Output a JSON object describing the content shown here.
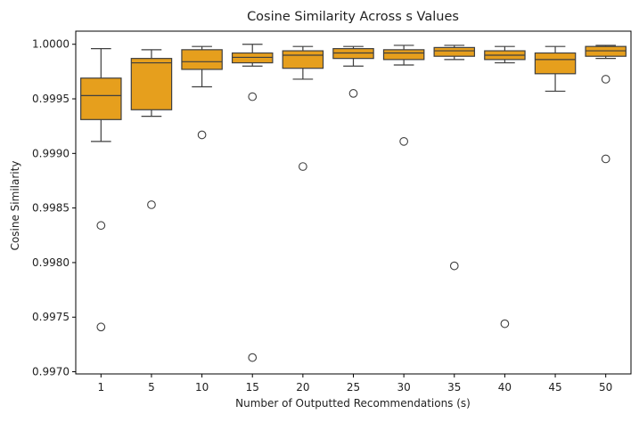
{
  "chart_data": {
    "type": "box",
    "title": "Cosine Similarity Across s Values",
    "xlabel": "Number of Outputted Recommendations (s)",
    "ylabel": "Cosine Similarity",
    "categories": [
      "1",
      "5",
      "10",
      "15",
      "20",
      "25",
      "30",
      "35",
      "40",
      "45",
      "50"
    ],
    "ylim": [
      0.99698,
      1.00012
    ],
    "yticks": [
      0.997,
      0.9975,
      0.998,
      0.9985,
      0.999,
      0.9995,
      1.0
    ],
    "ytick_labels": [
      "0.9970",
      "0.9975",
      "0.9980",
      "0.9985",
      "0.9990",
      "0.9995",
      "1.0000"
    ],
    "box_color": "#e69f1d",
    "edge_color": "#3f3f3f",
    "grid": false,
    "boxes": [
      {
        "category": "1",
        "whisker_low": 0.99911,
        "q1": 0.99931,
        "median": 0.99953,
        "q3": 0.99969,
        "whisker_high": 0.99996,
        "fliers": [
          0.99834,
          0.99741
        ]
      },
      {
        "category": "5",
        "whisker_low": 0.99934,
        "q1": 0.9994,
        "median": 0.99983,
        "q3": 0.99987,
        "whisker_high": 0.99995,
        "fliers": [
          0.99853
        ]
      },
      {
        "category": "10",
        "whisker_low": 0.99961,
        "q1": 0.99977,
        "median": 0.99984,
        "q3": 0.99995,
        "whisker_high": 0.99998,
        "fliers": [
          0.99917
        ]
      },
      {
        "category": "15",
        "whisker_low": 0.9998,
        "q1": 0.99983,
        "median": 0.99988,
        "q3": 0.99992,
        "whisker_high": 1.0,
        "fliers": [
          0.99952,
          0.99713
        ]
      },
      {
        "category": "20",
        "whisker_low": 0.99968,
        "q1": 0.99978,
        "median": 0.9999,
        "q3": 0.99994,
        "whisker_high": 0.99998,
        "fliers": [
          0.99888
        ]
      },
      {
        "category": "25",
        "whisker_low": 0.9998,
        "q1": 0.99987,
        "median": 0.99992,
        "q3": 0.99996,
        "whisker_high": 0.99998,
        "fliers": [
          0.99955
        ]
      },
      {
        "category": "30",
        "whisker_low": 0.99981,
        "q1": 0.99986,
        "median": 0.99992,
        "q3": 0.99995,
        "whisker_high": 0.99999,
        "fliers": [
          0.99911
        ]
      },
      {
        "category": "35",
        "whisker_low": 0.99986,
        "q1": 0.99989,
        "median": 0.99994,
        "q3": 0.99997,
        "whisker_high": 0.99999,
        "fliers": [
          0.99797
        ]
      },
      {
        "category": "40",
        "whisker_low": 0.99983,
        "q1": 0.99986,
        "median": 0.9999,
        "q3": 0.99994,
        "whisker_high": 0.99998,
        "fliers": [
          0.99744
        ]
      },
      {
        "category": "45",
        "whisker_low": 0.99957,
        "q1": 0.99973,
        "median": 0.99986,
        "q3": 0.99992,
        "whisker_high": 0.99998,
        "fliers": []
      },
      {
        "category": "50",
        "whisker_low": 0.99987,
        "q1": 0.99989,
        "median": 0.99994,
        "q3": 0.99998,
        "whisker_high": 0.99999,
        "fliers": [
          0.99968,
          0.99895
        ]
      }
    ]
  }
}
